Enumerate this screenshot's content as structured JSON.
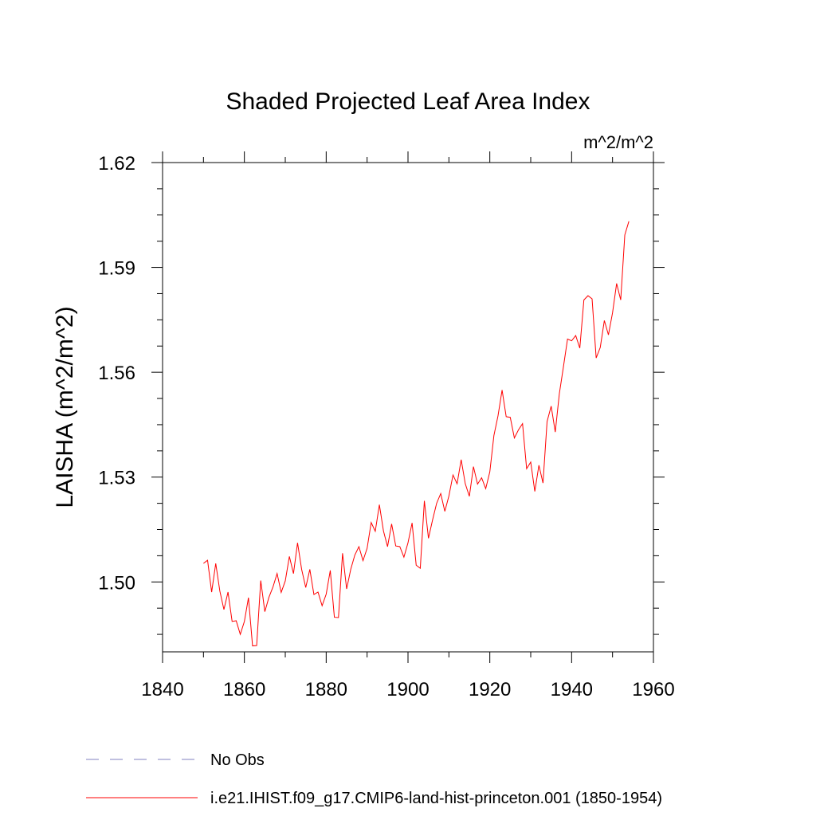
{
  "chart_data": {
    "type": "line",
    "title": "Shaded Projected Leaf Area Index",
    "units_label": "m^2/m^2",
    "ylabel": "LAISHA  (m^2/m^2)",
    "xlabel": "",
    "xlim": [
      1840,
      1960
    ],
    "ylim": [
      1.48,
      1.62
    ],
    "x_ticks": [
      1840,
      1860,
      1880,
      1900,
      1920,
      1940,
      1960
    ],
    "x_tick_labels": [
      "1840",
      "1860",
      "1880",
      "1900",
      "1920",
      "1940",
      "1960"
    ],
    "y_ticks": [
      1.5,
      1.53,
      1.56,
      1.59,
      1.62
    ],
    "y_tick_labels": [
      "1.50",
      "1.53",
      "1.56",
      "1.59",
      "1.62"
    ],
    "grid": false,
    "legend_position": "bottom-left",
    "series": [
      {
        "name": "No Obs",
        "color": "#8080c0",
        "dash": true,
        "x": [],
        "y": []
      },
      {
        "name": "i.e21.IHIST.f09_g17.CMIP6-land-hist-princeton.001 (1850-1954)",
        "color": "#ff0000",
        "dash": false,
        "x": [
          1850,
          1851,
          1852,
          1853,
          1854,
          1855,
          1856,
          1857,
          1858,
          1859,
          1860,
          1861,
          1862,
          1863,
          1864,
          1865,
          1866,
          1867,
          1868,
          1869,
          1870,
          1871,
          1872,
          1873,
          1874,
          1875,
          1876,
          1877,
          1878,
          1879,
          1880,
          1881,
          1882,
          1883,
          1884,
          1885,
          1886,
          1887,
          1888,
          1889,
          1890,
          1891,
          1892,
          1893,
          1894,
          1895,
          1896,
          1897,
          1898,
          1899,
          1900,
          1901,
          1902,
          1903,
          1904,
          1905,
          1906,
          1907,
          1908,
          1909,
          1910,
          1911,
          1912,
          1913,
          1914,
          1915,
          1916,
          1917,
          1918,
          1919,
          1920,
          1921,
          1922,
          1923,
          1924,
          1925,
          1926,
          1927,
          1928,
          1929,
          1930,
          1931,
          1932,
          1933,
          1934,
          1935,
          1936,
          1937,
          1938,
          1939,
          1940,
          1941,
          1942,
          1943,
          1944,
          1945,
          1946,
          1947,
          1948,
          1949,
          1950,
          1951,
          1952,
          1953,
          1954
        ],
        "y": [
          1.5053,
          1.5062,
          1.4971,
          1.5053,
          1.4974,
          1.4921,
          1.4971,
          1.4887,
          1.4889,
          1.485,
          1.4887,
          1.4955,
          1.4817,
          1.4818,
          1.5004,
          1.4915,
          1.4956,
          1.4986,
          1.5024,
          1.497,
          1.5003,
          1.5073,
          1.5024,
          1.5112,
          1.5036,
          1.4984,
          1.5036,
          1.4964,
          1.4971,
          1.4932,
          1.4965,
          1.5033,
          1.4899,
          1.4898,
          1.5082,
          1.498,
          1.5036,
          1.5077,
          1.5101,
          1.5061,
          1.5096,
          1.517,
          1.5145,
          1.5221,
          1.5146,
          1.5101,
          1.5166,
          1.5103,
          1.5101,
          1.5071,
          1.5112,
          1.5169,
          1.5048,
          1.5039,
          1.5232,
          1.5125,
          1.5177,
          1.5225,
          1.5253,
          1.5202,
          1.5246,
          1.5306,
          1.5281,
          1.535,
          1.5281,
          1.5245,
          1.533,
          1.528,
          1.5298,
          1.5267,
          1.5315,
          1.5419,
          1.5475,
          1.5549,
          1.5473,
          1.5471,
          1.5412,
          1.5435,
          1.5453,
          1.5324,
          1.5343,
          1.5259,
          1.5334,
          1.5283,
          1.5459,
          1.5503,
          1.5429,
          1.5539,
          1.5616,
          1.5695,
          1.569,
          1.5705,
          1.5669,
          1.5807,
          1.5819,
          1.581,
          1.5641,
          1.5671,
          1.5748,
          1.5707,
          1.577,
          1.5854,
          1.5807,
          1.5993,
          1.6032
        ]
      }
    ]
  }
}
